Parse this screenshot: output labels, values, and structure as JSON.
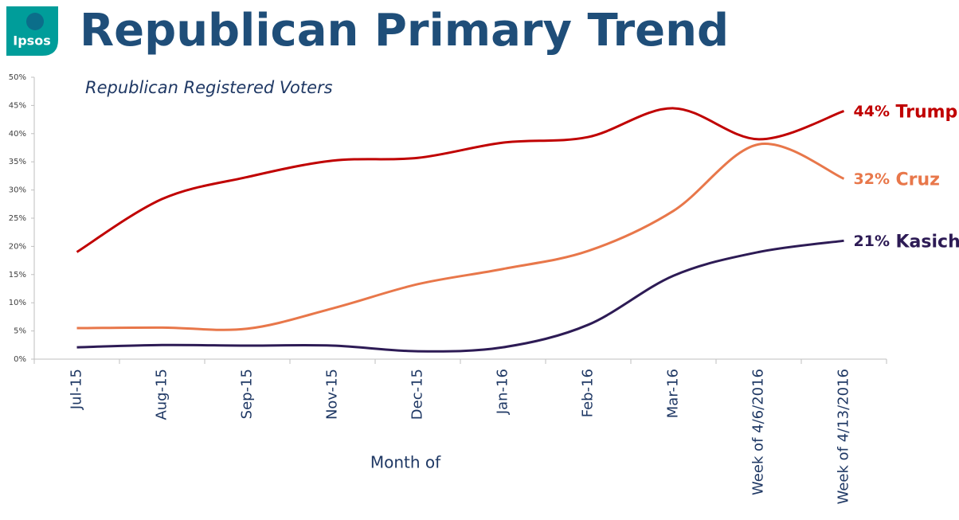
{
  "logo": "Ipsos",
  "chart_data": {
    "type": "line",
    "title": "Republican Primary Trend",
    "subtitle": "Republican Registered Voters",
    "x_label": "Month of",
    "categories": [
      "Jul-15",
      "Aug-15",
      "Sep-15",
      "Nov-15",
      "Dec-15",
      "Jan-16",
      "Feb-16",
      "Mar-16",
      "Week of 4/6/2016",
      "Week of 4/13/2016"
    ],
    "ylim": [
      0,
      50
    ],
    "yticks": [
      {
        "value": 0,
        "label": "0%"
      },
      {
        "value": 5,
        "label": "5%"
      },
      {
        "value": 10,
        "label": "10%"
      },
      {
        "value": 15,
        "label": "15%"
      },
      {
        "value": 20,
        "label": "20%"
      },
      {
        "value": 25,
        "label": "25%"
      },
      {
        "value": 30,
        "label": "30%"
      },
      {
        "value": 35,
        "label": "35%"
      },
      {
        "value": 40,
        "label": "40%"
      },
      {
        "value": 45,
        "label": "45%"
      },
      {
        "value": 50,
        "label": "50%"
      }
    ],
    "grid": false,
    "series": [
      {
        "name": "Trump",
        "color": "#c00000",
        "values": [
          19,
          28.4,
          32.3,
          35.2,
          35.7,
          38.4,
          39.4,
          44.5,
          39,
          44
        ],
        "value_labels": [
          null,
          null,
          null,
          null,
          null,
          null,
          null,
          null,
          null,
          "44%"
        ]
      },
      {
        "name": "Cruz",
        "color": "#e8774a",
        "values": [
          5.5,
          5.6,
          5.4,
          9,
          13.3,
          16,
          19.2,
          26.3,
          38.1,
          32
        ],
        "value_labels": [
          null,
          null,
          null,
          null,
          null,
          null,
          null,
          null,
          null,
          "32%"
        ]
      },
      {
        "name": "Kasich",
        "color": "#2d1b55",
        "values": [
          2.1,
          2.5,
          2.4,
          2.4,
          1.4,
          2.1,
          6.1,
          14.8,
          19,
          21
        ],
        "value_labels": [
          null,
          null,
          null,
          null,
          null,
          null,
          null,
          null,
          null,
          "21%"
        ]
      }
    ]
  }
}
